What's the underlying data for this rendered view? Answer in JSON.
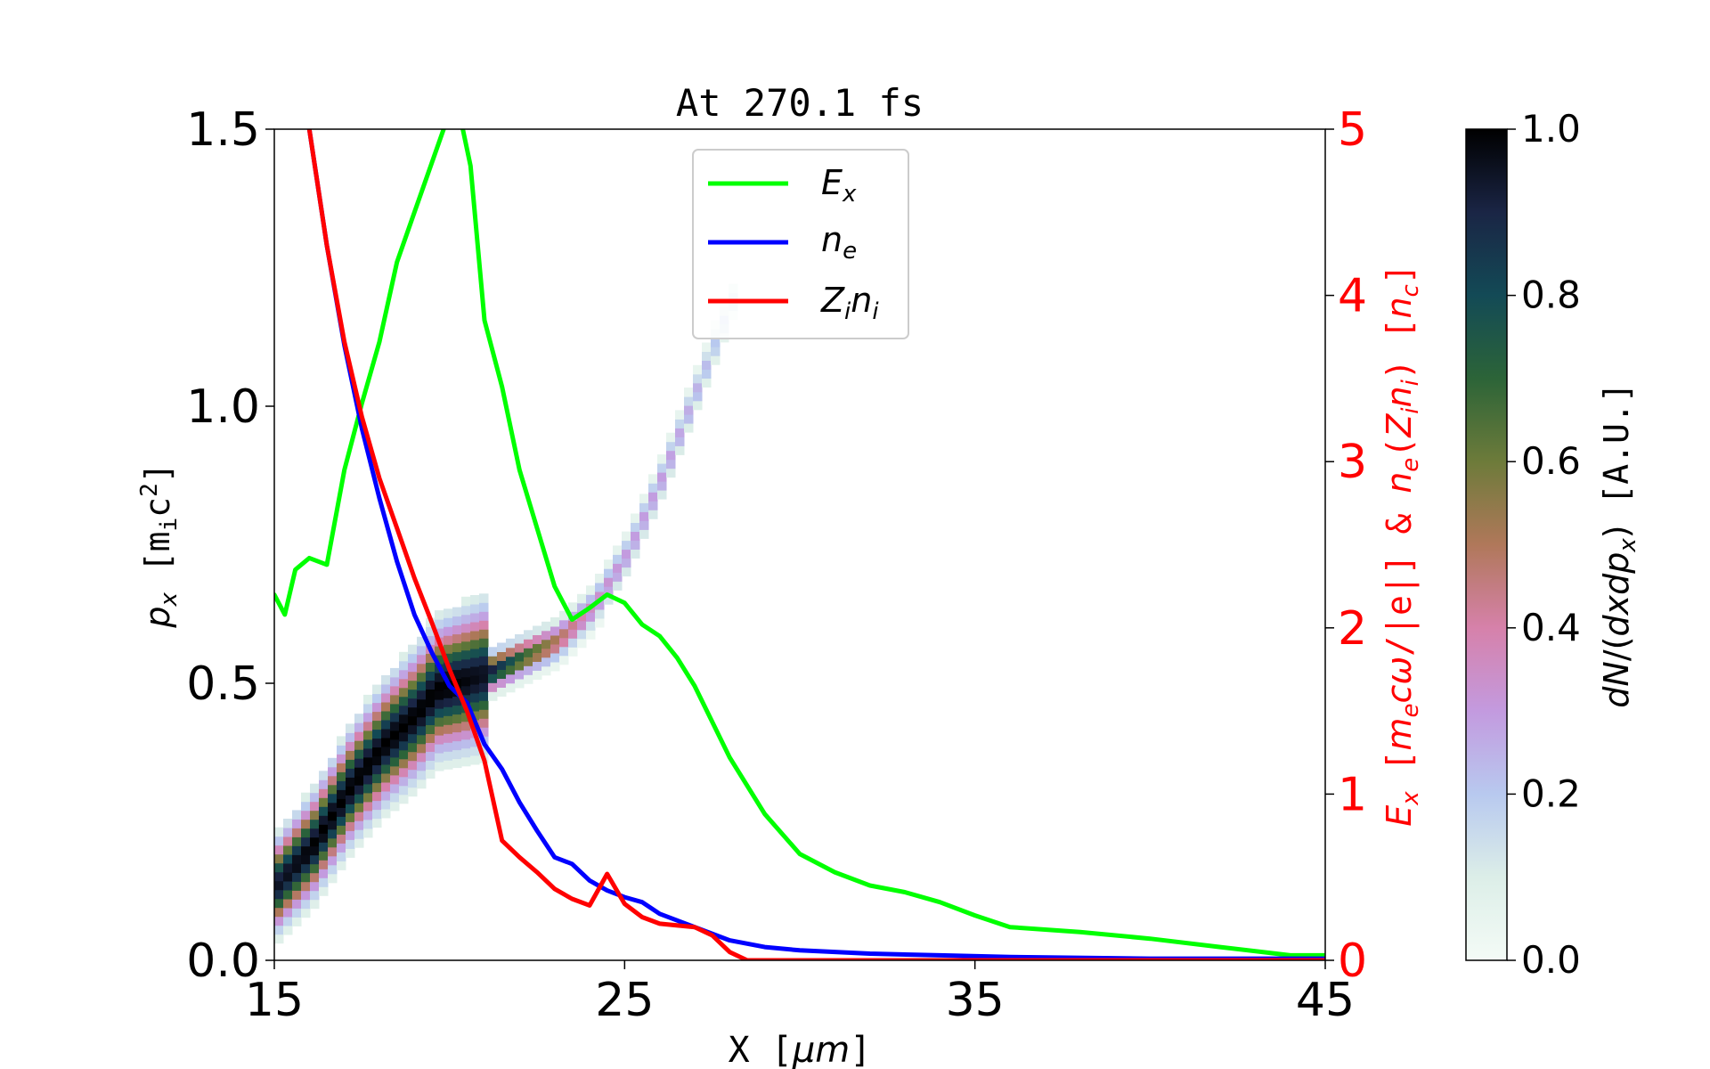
{
  "chart_data": {
    "type": "line",
    "title": "At 270.1 fs",
    "xlabel": "X [μm]",
    "ylabel": "p_x [m_i c^2]",
    "y2label": "E_x [m_e cω/|e|] & n_e(Z_i n_i) [n_c]",
    "colorbar_label": "dN/(dxdp_x) [A.U.]",
    "xlim": [
      15,
      45
    ],
    "ylim": [
      0,
      1.5
    ],
    "y2lim": [
      0,
      5
    ],
    "xticks": [
      "15",
      "25",
      "35",
      "45"
    ],
    "yticks": [
      "0.0",
      "0.5",
      "1.0",
      "1.5"
    ],
    "y2ticks": [
      "0",
      "1",
      "2",
      "3",
      "4",
      "5"
    ],
    "colorbar_ticks": [
      "0.0",
      "0.2",
      "0.4",
      "0.6",
      "0.8",
      "1.0"
    ],
    "colorbar_range": [
      0,
      1
    ],
    "legend_position": "upper-center",
    "colors": {
      "Ex": "#00ff00",
      "ne": "#0000ff",
      "Zini": "#ff0000",
      "right_axis": "#ff0000"
    },
    "series": [
      {
        "key": "Ex",
        "name": "E_x",
        "axis": "right",
        "x": [
          15,
          15.3,
          15.6,
          16,
          16.5,
          17,
          17.5,
          18,
          18.5,
          19,
          19.5,
          20,
          20.3,
          20.6,
          21,
          21.5,
          22,
          22.5,
          23,
          23.5,
          24,
          24.5,
          25,
          25.5,
          26,
          26.5,
          27,
          28,
          29,
          30,
          31,
          32,
          33,
          34,
          35,
          36,
          38,
          40,
          42,
          44,
          45
        ],
        "y": [
          2.2,
          2.08,
          2.35,
          2.42,
          2.38,
          2.95,
          3.35,
          3.72,
          4.2,
          4.5,
          4.8,
          5.1,
          5.08,
          4.78,
          3.85,
          3.45,
          2.95,
          2.6,
          2.25,
          2.05,
          2.12,
          2.2,
          2.15,
          2.02,
          1.95,
          1.82,
          1.65,
          1.22,
          0.88,
          0.64,
          0.53,
          0.45,
          0.41,
          0.35,
          0.27,
          0.2,
          0.17,
          0.13,
          0.08,
          0.03,
          0.03
        ]
      },
      {
        "key": "ne",
        "name": "n_e",
        "axis": "right",
        "x": [
          16,
          16.5,
          17,
          17.5,
          18,
          18.5,
          19,
          19.5,
          20,
          20.5,
          21,
          21.5,
          22,
          22.5,
          23,
          23.5,
          24,
          24.5,
          25,
          25.5,
          26,
          27,
          28,
          29,
          30,
          32,
          34,
          36,
          40,
          45
        ],
        "y": [
          5.0,
          4.3,
          3.7,
          3.2,
          2.78,
          2.4,
          2.08,
          1.85,
          1.65,
          1.55,
          1.3,
          1.15,
          0.95,
          0.78,
          0.62,
          0.58,
          0.48,
          0.42,
          0.38,
          0.35,
          0.28,
          0.2,
          0.12,
          0.08,
          0.06,
          0.04,
          0.03,
          0.02,
          0.01,
          0.01
        ]
      },
      {
        "key": "Zini",
        "name": "Z_i n_i",
        "axis": "right",
        "x": [
          16,
          16.5,
          17,
          17.5,
          18,
          18.5,
          19,
          19.5,
          20,
          20.5,
          21,
          21.5,
          22,
          22.5,
          23,
          23.5,
          24,
          24.5,
          25,
          25.5,
          26,
          27,
          27.5,
          28,
          28.5,
          30,
          35,
          40,
          45
        ],
        "y": [
          5.0,
          4.3,
          3.72,
          3.27,
          2.9,
          2.6,
          2.3,
          2.03,
          1.75,
          1.5,
          1.2,
          0.72,
          0.62,
          0.53,
          0.43,
          0.37,
          0.33,
          0.52,
          0.34,
          0.26,
          0.22,
          0.2,
          0.15,
          0.05,
          0.0,
          0.0,
          0.0,
          0.0,
          0.0
        ]
      }
    ],
    "heatmap_ridge": {
      "name": "dN/(dxdp_x)",
      "axis": "left",
      "x": [
        15,
        16,
        17,
        18,
        19,
        19.5,
        20,
        21,
        22,
        23,
        24,
        25,
        26,
        27,
        28
      ],
      "px": [
        0.13,
        0.2,
        0.3,
        0.38,
        0.44,
        0.48,
        0.49,
        0.51,
        0.54,
        0.57,
        0.63,
        0.73,
        0.87,
        1.03,
        1.19
      ],
      "density": [
        0.95,
        1.0,
        1.0,
        1.0,
        1.0,
        1.0,
        1.0,
        0.95,
        0.7,
        0.5,
        0.35,
        0.3,
        0.3,
        0.25,
        0.15
      ]
    }
  }
}
